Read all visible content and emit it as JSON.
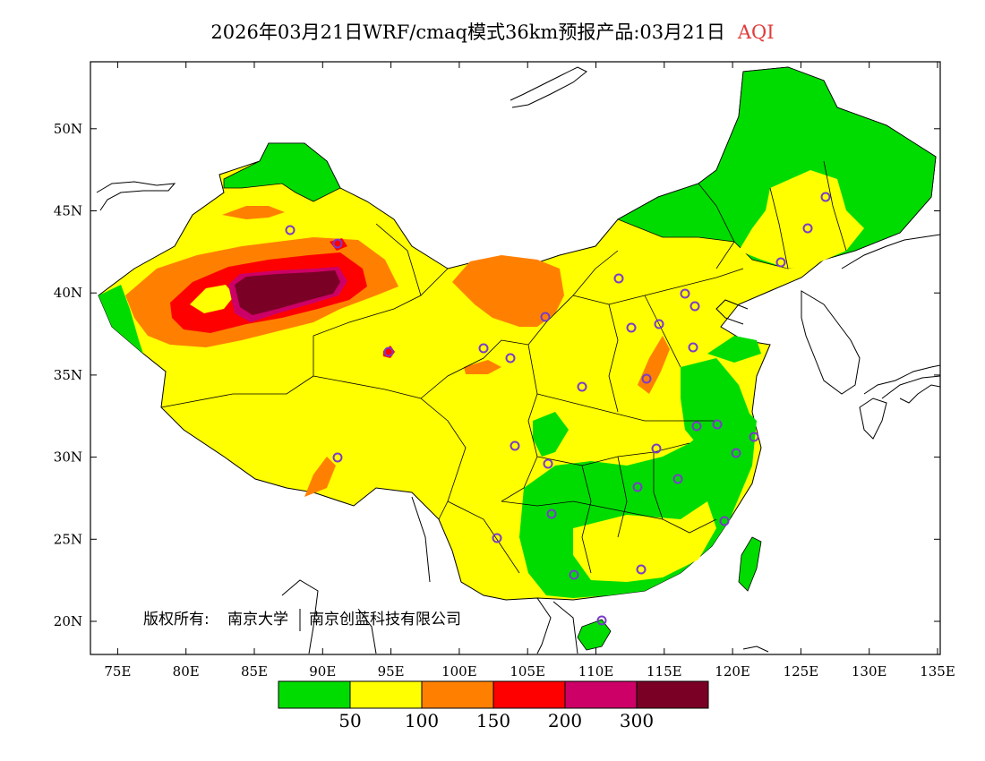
{
  "title": {
    "main": "2026年03月21日WRF/cmaq模式36km预报产品:03月21日",
    "variable": "AQI"
  },
  "axes": {
    "lon_ticks": [
      "75E",
      "80E",
      "85E",
      "90E",
      "95E",
      "100E",
      "105E",
      "110E",
      "115E",
      "120E",
      "125E",
      "130E",
      "135E"
    ],
    "lat_ticks": [
      "20N",
      "25N",
      "30N",
      "35N",
      "40N",
      "45N",
      "50N"
    ]
  },
  "copyright": {
    "label": "版权所有:",
    "org1": "南京大学",
    "org2": "南京创蓝科技有限公司"
  },
  "legend": {
    "colors": [
      "#00dc00",
      "#ffff00",
      "#ff8000",
      "#ff0000",
      "#cc0066",
      "#7a0026"
    ],
    "labels": [
      "50",
      "100",
      "150",
      "200",
      "300"
    ]
  },
  "colors": {
    "good": "#00dc00",
    "moderate": "#ffff00",
    "usg": "#ff8000",
    "unhealthy": "#ff0000",
    "very_unhealthy": "#cc0066",
    "hazardous": "#7a0026",
    "station_marker": "#7a3cc8"
  }
}
